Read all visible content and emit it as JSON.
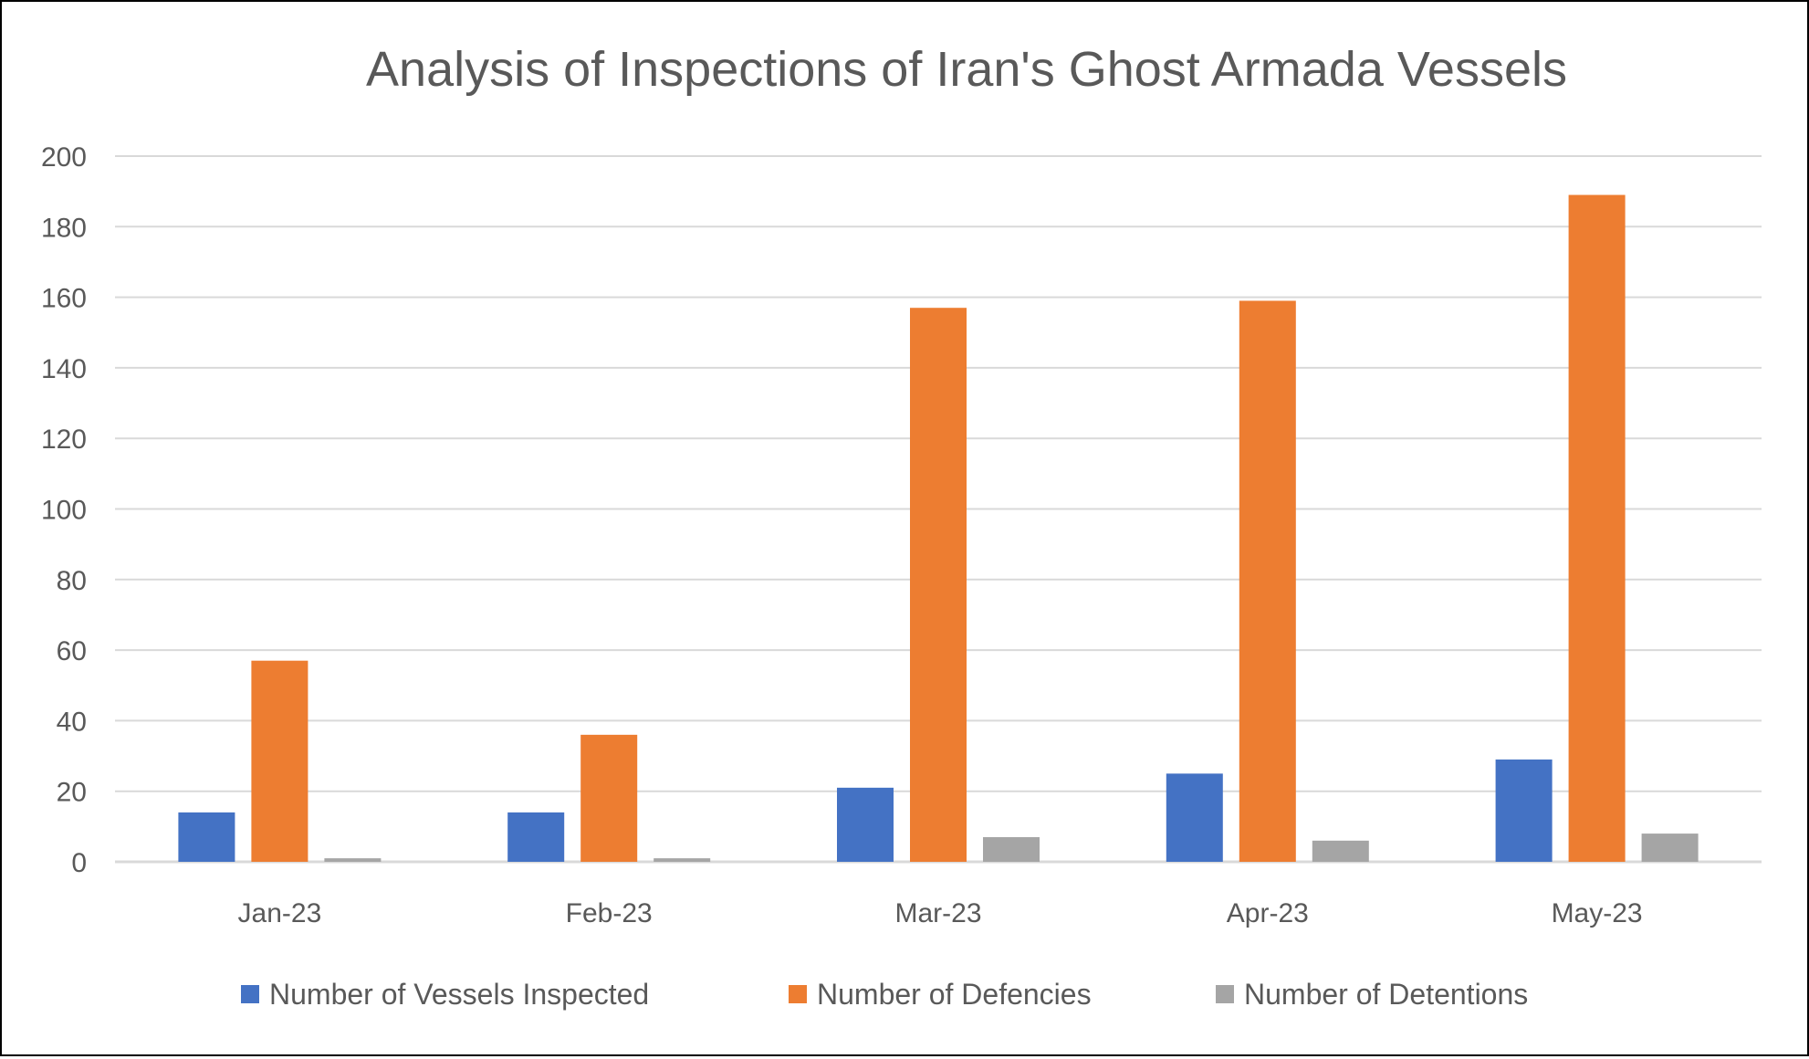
{
  "chart_data": {
    "type": "bar",
    "title": "Analysis of Inspections of Iran's Ghost Armada Vessels",
    "xlabel": "",
    "ylabel": "",
    "categories": [
      "Jan-23",
      "Feb-23",
      "Mar-23",
      "Apr-23",
      "May-23"
    ],
    "series": [
      {
        "name": "Number of Vessels Inspected",
        "color": "#4472C4",
        "values": [
          14,
          14,
          21,
          25,
          29
        ]
      },
      {
        "name": "Number of Defencies",
        "color": "#ED7D31",
        "values": [
          57,
          36,
          157,
          159,
          189
        ]
      },
      {
        "name": "Number of Detentions",
        "color": "#A5A5A5",
        "values": [
          1,
          1,
          7,
          6,
          8
        ]
      }
    ],
    "ylim": [
      0,
      200
    ],
    "yticks": [
      "0",
      "20",
      "40",
      "60",
      "80",
      "100",
      "120",
      "140",
      "160",
      "180",
      "200"
    ],
    "grid": true,
    "legend": "bottom"
  }
}
